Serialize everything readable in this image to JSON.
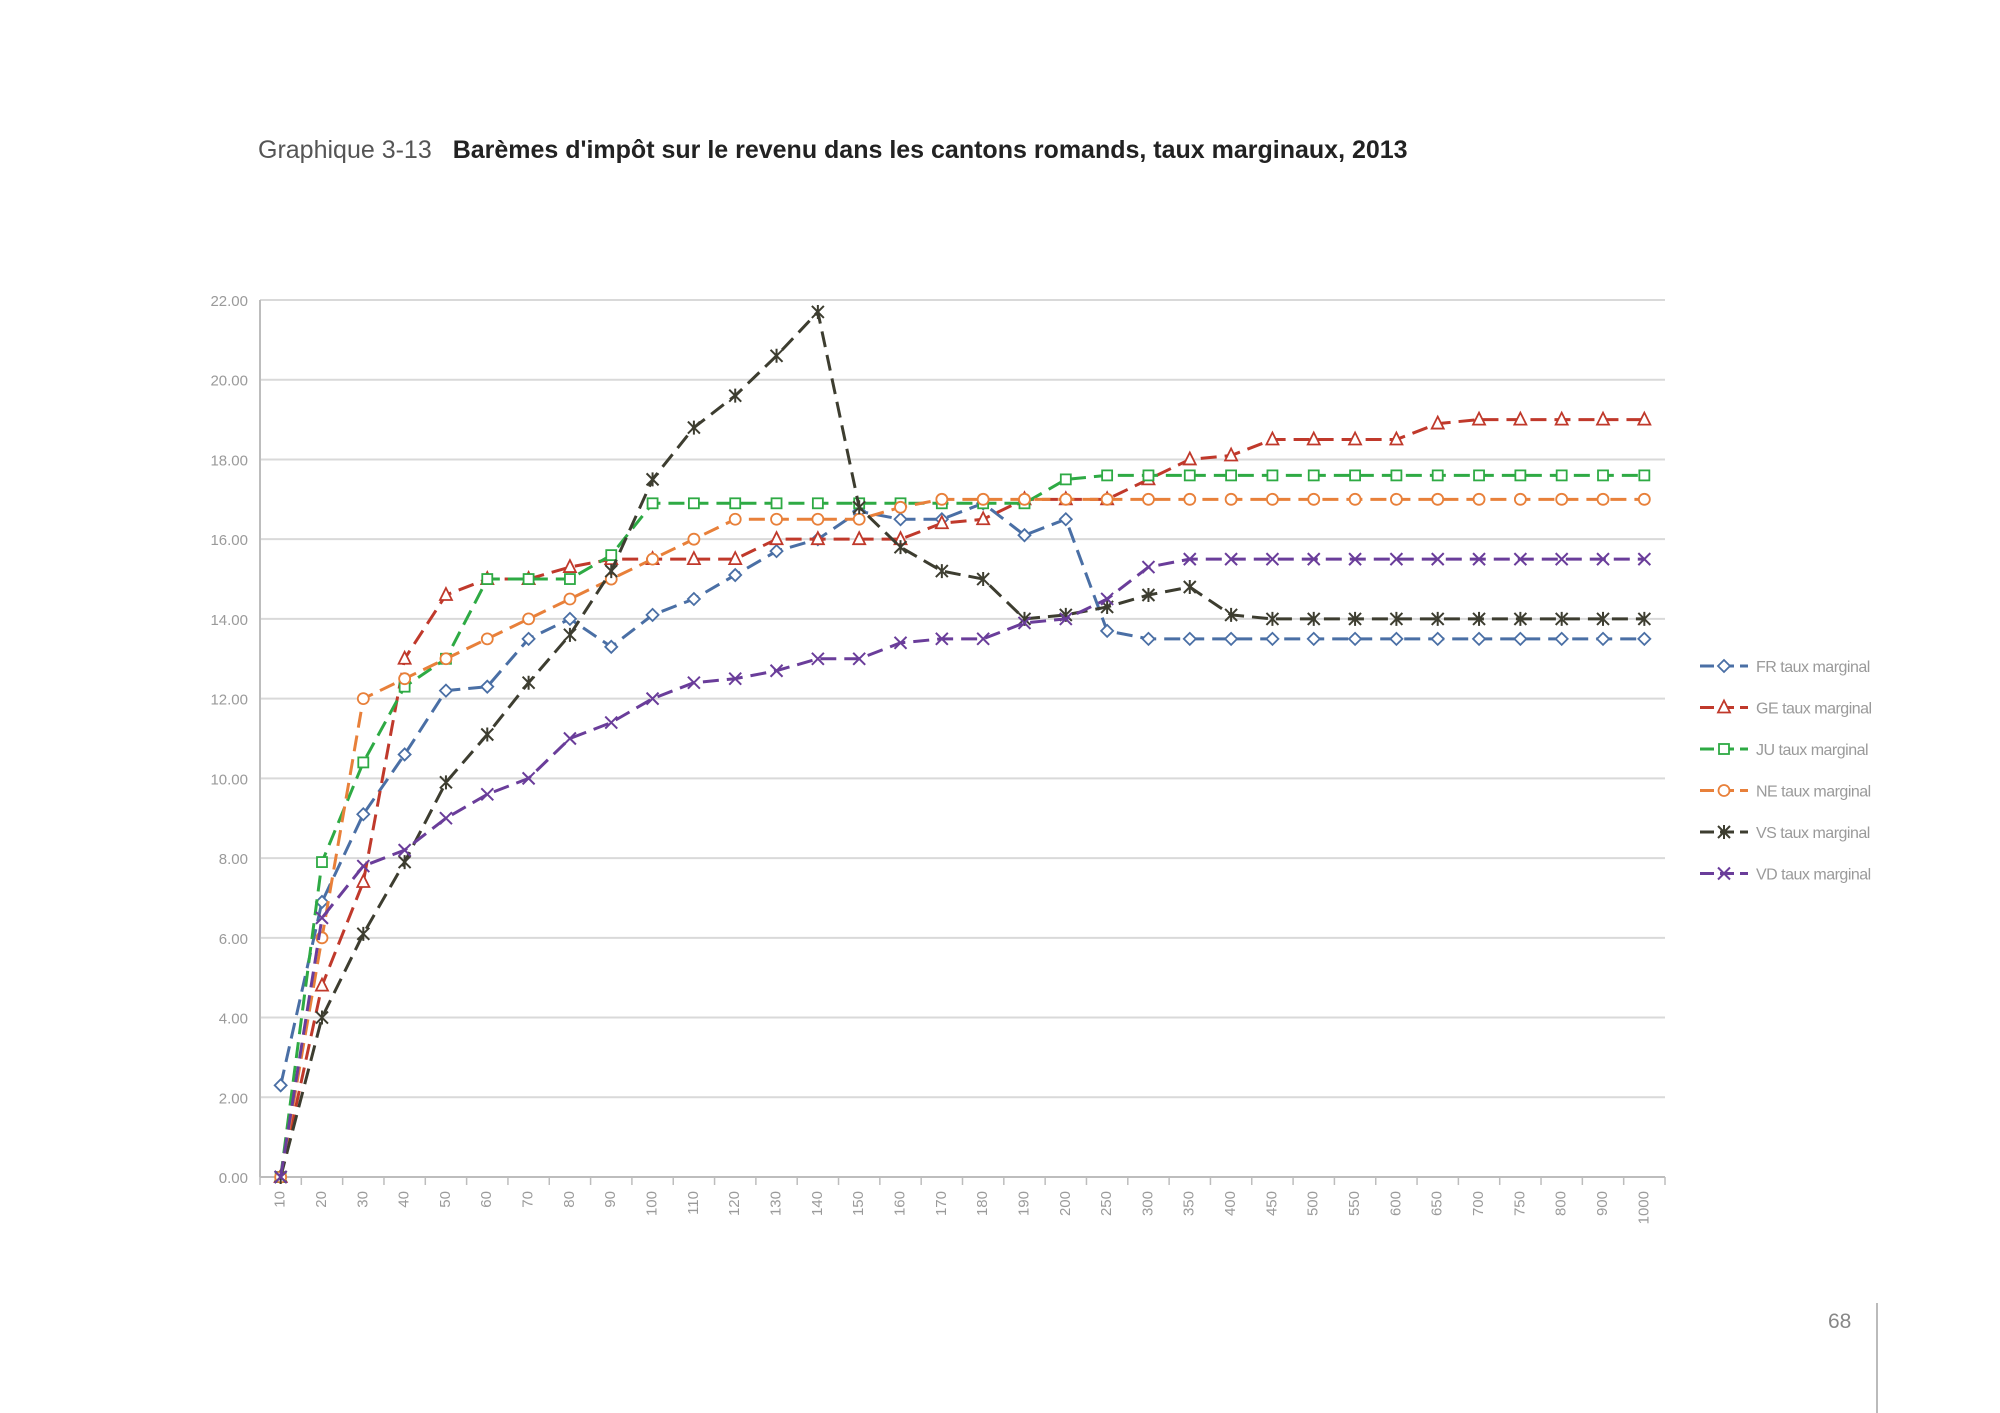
{
  "figure": {
    "label": "Graphique 3-13",
    "title": "Barèmes d'impôt sur le revenu dans les cantons romands, taux marginaux, 2013"
  },
  "page_number": "68",
  "chart_data": {
    "type": "line",
    "categories": [
      "10",
      "20",
      "30",
      "40",
      "50",
      "60",
      "70",
      "80",
      "90",
      "100",
      "110",
      "120",
      "130",
      "140",
      "150",
      "160",
      "170",
      "180",
      "190",
      "200",
      "250",
      "300",
      "350",
      "400",
      "450",
      "500",
      "550",
      "600",
      "650",
      "700",
      "750",
      "800",
      "900",
      "1000"
    ],
    "y_ticks": [
      "0.00",
      "2.00",
      "4.00",
      "6.00",
      "8.00",
      "10.00",
      "12.00",
      "14.00",
      "16.00",
      "18.00",
      "20.00",
      "22.00"
    ],
    "ylim": [
      0,
      22
    ],
    "grid": "horizontal",
    "legend_position": "right",
    "series": [
      {
        "name": "FR taux marginal",
        "color": "#4a6fa5",
        "marker": "diamond",
        "values": [
          2.3,
          6.9,
          9.1,
          10.6,
          12.2,
          12.3,
          13.5,
          14.0,
          13.3,
          14.1,
          14.5,
          15.1,
          15.7,
          16.0,
          16.7,
          16.5,
          16.5,
          16.9,
          16.1,
          16.5,
          13.7,
          13.5,
          13.5,
          13.5,
          13.5,
          13.5,
          13.5,
          13.5,
          13.5,
          13.5,
          13.5,
          13.5,
          13.5,
          13.5
        ]
      },
      {
        "name": "GE taux marginal",
        "color": "#c0392b",
        "marker": "triangle",
        "values": [
          0.0,
          4.8,
          7.4,
          13.0,
          14.6,
          15.0,
          15.0,
          15.3,
          15.5,
          15.5,
          15.5,
          15.5,
          16.0,
          16.0,
          16.0,
          16.0,
          16.4,
          16.5,
          17.0,
          17.0,
          17.0,
          17.5,
          18.0,
          18.1,
          18.5,
          18.5,
          18.5,
          18.5,
          18.9,
          19.0,
          19.0,
          19.0,
          19.0,
          19.0
        ]
      },
      {
        "name": "JU taux marginal",
        "color": "#2eaa44",
        "marker": "square",
        "values": [
          0.0,
          7.9,
          10.4,
          12.3,
          13.0,
          15.0,
          15.0,
          15.0,
          15.6,
          16.9,
          16.9,
          16.9,
          16.9,
          16.9,
          16.9,
          16.9,
          16.9,
          16.9,
          16.9,
          17.5,
          17.6,
          17.6,
          17.6,
          17.6,
          17.6,
          17.6,
          17.6,
          17.6,
          17.6,
          17.6,
          17.6,
          17.6,
          17.6,
          17.6
        ]
      },
      {
        "name": "NE taux marginal",
        "color": "#e8803a",
        "marker": "circle",
        "values": [
          0.0,
          6.0,
          12.0,
          12.5,
          13.0,
          13.5,
          14.0,
          14.5,
          15.0,
          15.5,
          16.0,
          16.5,
          16.5,
          16.5,
          16.5,
          16.8,
          17.0,
          17.0,
          17.0,
          17.0,
          17.0,
          17.0,
          17.0,
          17.0,
          17.0,
          17.0,
          17.0,
          17.0,
          17.0,
          17.0,
          17.0,
          17.0,
          17.0,
          17.0
        ]
      },
      {
        "name": "VS taux marginal",
        "color": "#3d3d30",
        "marker": "star",
        "values": [
          0.0,
          4.0,
          6.1,
          7.9,
          9.9,
          11.1,
          12.4,
          13.6,
          15.2,
          17.5,
          18.8,
          19.6,
          20.6,
          21.7,
          16.8,
          15.8,
          15.2,
          15.0,
          14.0,
          14.1,
          14.3,
          14.6,
          14.8,
          14.1,
          14.0,
          14.0,
          14.0,
          14.0,
          14.0,
          14.0,
          14.0,
          14.0,
          14.0,
          14.0
        ]
      },
      {
        "name": "VD taux marginal",
        "color": "#6a3d9a",
        "marker": "x",
        "values": [
          0.0,
          6.5,
          7.8,
          8.2,
          9.0,
          9.6,
          10.0,
          11.0,
          11.4,
          12.0,
          12.4,
          12.5,
          12.7,
          13.0,
          13.0,
          13.4,
          13.5,
          13.5,
          13.9,
          14.0,
          14.5,
          15.3,
          15.5,
          15.5,
          15.5,
          15.5,
          15.5,
          15.5,
          15.5,
          15.5,
          15.5,
          15.5,
          15.5,
          15.5
        ]
      }
    ]
  }
}
